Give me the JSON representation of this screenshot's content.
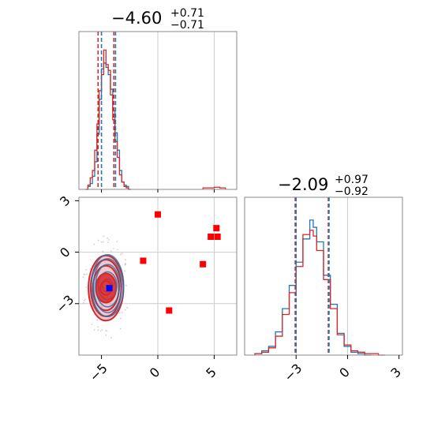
{
  "colors": {
    "red": "#d62728",
    "blue": "#1f77b4",
    "marker_red": "#ff0000",
    "marker_blue": "#0000ff",
    "grid": "#cccccc",
    "frame": "#888888",
    "red_fill": "#ee99a4"
  },
  "titles": {
    "p1": {
      "value": "−4.60",
      "plus": "+0.71",
      "minus": "−0.71"
    },
    "p2": {
      "value": "−2.09",
      "plus": "+0.97",
      "minus": "−0.92"
    }
  },
  "chart_data": [
    {
      "type": "histogram",
      "panel": "top-left",
      "xlim": [
        -7,
        7
      ],
      "xgrid": [
        0,
        5
      ],
      "quantile_lines": [
        {
          "series": "red",
          "values": [
            -5.3,
            -3.9
          ]
        },
        {
          "series": "blue",
          "values": [
            -5.0,
            -3.75
          ]
        }
      ],
      "series": [
        {
          "color": "blue",
          "bins": [
            -6.4,
            -6.2,
            -6.0,
            -5.8,
            -5.6,
            -5.4,
            -5.2,
            -5.0,
            -4.8,
            -4.6,
            -4.4,
            -4.2,
            -4.0,
            -3.8,
            -3.6,
            -3.4,
            -3.2,
            -3.0,
            -2.8,
            -2.6,
            -2.4
          ],
          "heights": [
            0.0,
            0.02,
            0.04,
            0.09,
            0.19,
            0.38,
            0.62,
            0.83,
            0.87,
            0.84,
            0.79,
            0.69,
            0.54,
            0.39,
            0.27,
            0.13,
            0.05,
            0.03,
            0.02,
            0.0
          ]
        },
        {
          "color": "red",
          "bins": [
            -6.4,
            -6.2,
            -6.0,
            -5.8,
            -5.6,
            -5.4,
            -5.2,
            -5.0,
            -4.8,
            -4.6,
            -4.4,
            -4.2,
            -4.0,
            -3.8,
            -3.6,
            -3.4,
            -3.2,
            -3.0,
            -2.8,
            -2.6,
            -2.4
          ],
          "heights": [
            0.0,
            0.03,
            0.08,
            0.13,
            0.27,
            0.45,
            0.68,
            0.79,
            0.96,
            0.86,
            0.82,
            0.65,
            0.48,
            0.33,
            0.22,
            0.1,
            0.05,
            0.02,
            0.01,
            0.0
          ]
        }
      ],
      "tail": {
        "color": "red",
        "bins": [
          4.0,
          4.5,
          5.0,
          5.5,
          6.0
        ],
        "heights": [
          0.01,
          0.01,
          0.015,
          0.01
        ]
      }
    },
    {
      "type": "scatter",
      "panel": "bottom-left",
      "xlim": [
        -7,
        7
      ],
      "ylim": [
        -6,
        3.2
      ],
      "xticks": [
        -5,
        0,
        5
      ],
      "xtick_labels": [
        "−5",
        "0",
        "5"
      ],
      "yticks": [
        3,
        0,
        -3
      ],
      "ytick_labels": [
        "3",
        "0",
        "−3"
      ],
      "xgrid": [
        0,
        5
      ],
      "ygrid": [
        0,
        -3
      ],
      "red_points": [
        [
          0,
          2.2
        ],
        [
          4.7,
          0.9
        ],
        [
          5.2,
          1.4
        ],
        [
          5.3,
          0.9
        ],
        [
          -1.3,
          -0.5
        ],
        [
          4.0,
          -0.7
        ],
        [
          1.0,
          -3.4
        ]
      ],
      "blue_point": [
        -4.3,
        -2.1
      ],
      "contour_center": [
        -4.6,
        -2.09
      ],
      "contour_levels": [
        {
          "rx": 0.5,
          "ry": 0.4
        },
        {
          "rx": 0.9,
          "ry": 0.85
        },
        {
          "rx": 1.15,
          "ry": 1.3
        },
        {
          "rx": 1.35,
          "ry": 1.65
        },
        {
          "rx": 1.55,
          "ry": 1.9
        }
      ]
    },
    {
      "type": "histogram",
      "panel": "bottom-right",
      "xlim": [
        -6,
        3.2
      ],
      "xticks": [
        -3,
        0,
        3
      ],
      "xtick_labels": [
        "−3",
        "0",
        "3"
      ],
      "xgrid": [
        0,
        -3
      ],
      "quantile_lines": [
        {
          "series": "red",
          "values": [
            -3.05,
            -1.12
          ]
        },
        {
          "series": "blue",
          "values": [
            -3.0,
            -1.08
          ]
        }
      ],
      "series": [
        {
          "color": "blue",
          "bins": [
            -5.4,
            -5.0,
            -4.6,
            -4.2,
            -3.8,
            -3.4,
            -3.0,
            -2.6,
            -2.2,
            -2.0,
            -1.8,
            -1.4,
            -1.0,
            -0.6,
            -0.2,
            0.2,
            0.6,
            1.0,
            1.4
          ],
          "heights": [
            0.01,
            0.03,
            0.06,
            0.16,
            0.32,
            0.48,
            0.64,
            0.8,
            0.93,
            0.88,
            0.78,
            0.55,
            0.35,
            0.15,
            0.06,
            0.02,
            0.01,
            0.0
          ]
        },
        {
          "color": "red",
          "bins": [
            -5.4,
            -5.0,
            -4.6,
            -4.2,
            -3.8,
            -3.4,
            -3.0,
            -2.6,
            -2.2,
            -2.0,
            -1.8,
            -1.4,
            -1.0,
            -0.6,
            -0.2,
            0.2,
            0.6,
            1.0,
            1.4,
            1.8,
            2.2
          ],
          "heights": [
            0.01,
            0.02,
            0.05,
            0.13,
            0.28,
            0.43,
            0.61,
            0.83,
            0.86,
            0.82,
            0.72,
            0.52,
            0.32,
            0.14,
            0.07,
            0.03,
            0.02,
            0.01,
            0.01,
            0.0
          ]
        }
      ]
    }
  ]
}
